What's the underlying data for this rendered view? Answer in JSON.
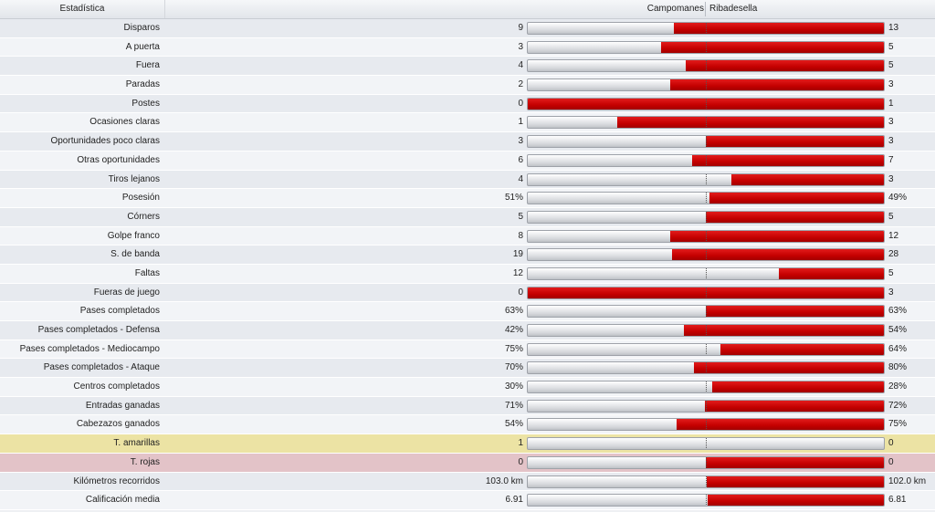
{
  "header": {
    "stat_label": "Estadística",
    "home_team": "Campomanes",
    "away_team": "Ribadesella"
  },
  "colors": {
    "bar_fill": "#cc0000",
    "bar_empty": "#dcdde0",
    "yellow_row": "#ece3a4",
    "red_row": "#e3c3c8"
  },
  "rows": [
    {
      "label": "Disparos",
      "home": "9",
      "away": "13",
      "away_share": 0.59
    },
    {
      "label": "A puerta",
      "home": "3",
      "away": "5",
      "away_share": 0.625
    },
    {
      "label": "Fuera",
      "home": "4",
      "away": "5",
      "away_share": 0.556
    },
    {
      "label": "Paradas",
      "home": "2",
      "away": "3",
      "away_share": 0.6
    },
    {
      "label": "Postes",
      "home": "0",
      "away": "1",
      "away_share": 1.0
    },
    {
      "label": "Ocasiones claras",
      "home": "1",
      "away": "3",
      "away_share": 0.75
    },
    {
      "label": "Oportunidades poco claras",
      "home": "3",
      "away": "3",
      "away_share": 0.5
    },
    {
      "label": "Otras oportunidades",
      "home": "6",
      "away": "7",
      "away_share": 0.538
    },
    {
      "label": "Tiros lejanos",
      "home": "4",
      "away": "3",
      "away_share": 0.429
    },
    {
      "label": "Posesión",
      "home": "51%",
      "away": "49%",
      "away_share": 0.49
    },
    {
      "label": "Córners",
      "home": "5",
      "away": "5",
      "away_share": 0.5
    },
    {
      "label": "Golpe franco",
      "home": "8",
      "away": "12",
      "away_share": 0.6
    },
    {
      "label": "S. de banda",
      "home": "19",
      "away": "28",
      "away_share": 0.596
    },
    {
      "label": "Faltas",
      "home": "12",
      "away": "5",
      "away_share": 0.294
    },
    {
      "label": "Fueras de juego",
      "home": "0",
      "away": "3",
      "away_share": 1.0
    },
    {
      "label": "Pases completados",
      "home": "63%",
      "away": "63%",
      "away_share": 0.5
    },
    {
      "label": "Pases completados - Defensa",
      "home": "42%",
      "away": "54%",
      "away_share": 0.5625
    },
    {
      "label": "Pases completados - Mediocampo",
      "home": "75%",
      "away": "64%",
      "away_share": 0.46
    },
    {
      "label": "Pases completados - Ataque",
      "home": "70%",
      "away": "80%",
      "away_share": 0.533
    },
    {
      "label": "Centros completados",
      "home": "30%",
      "away": "28%",
      "away_share": 0.483
    },
    {
      "label": "Entradas ganadas",
      "home": "71%",
      "away": "72%",
      "away_share": 0.503
    },
    {
      "label": "Cabezazos ganados",
      "home": "54%",
      "away": "75%",
      "away_share": 0.581
    },
    {
      "label": "T. amarillas",
      "home": "1",
      "away": "0",
      "away_share": 0.0,
      "highlight": "yellow"
    },
    {
      "label": "T. rojas",
      "home": "0",
      "away": "0",
      "away_share": 0.5,
      "highlight": "red"
    },
    {
      "label": "Kilómetros recorridos",
      "home": "103.0 km",
      "away": "102.0 km",
      "away_share": 0.498
    },
    {
      "label": "Calificación media",
      "home": "6.91",
      "away": "6.81",
      "away_share": 0.496
    }
  ]
}
